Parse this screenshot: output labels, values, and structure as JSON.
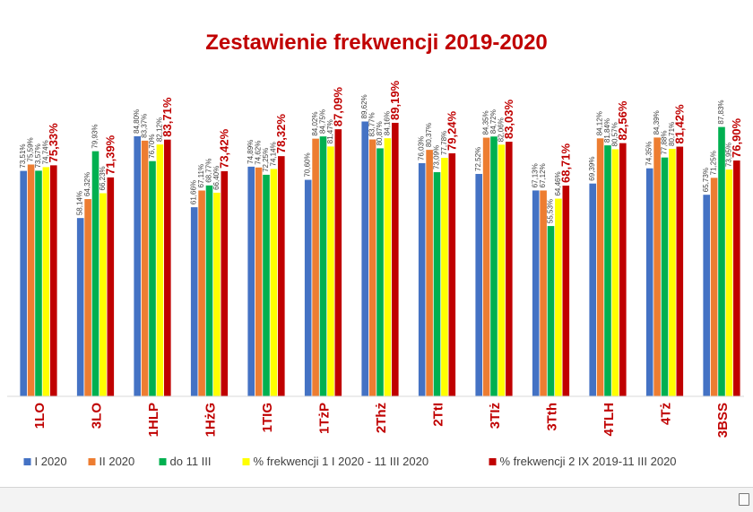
{
  "chart_data": {
    "type": "bar",
    "title": "Zestawienie frekwencji 2019-2020",
    "categories": [
      "1LO",
      "3LO",
      "1HLP",
      "1HżG",
      "1TIG",
      "1TżP",
      "2Thż",
      "2TtI",
      "3TIż",
      "3Tth",
      "4TLH",
      "4Tż",
      "3BSS"
    ],
    "series": [
      {
        "name": "I 2020",
        "color": "#4472c4",
        "values": [
          73.51,
          58.14,
          84.8,
          61.66,
          74.89,
          70.6,
          89.62,
          76.03,
          72.52,
          67.13,
          69.39,
          74.35,
          65.73
        ],
        "labels": [
          "73,51%",
          "58,14%",
          "84,80%",
          "61,66%",
          "74,89%",
          "70,60%",
          "89,62%",
          "76,03%",
          "72,52%",
          "67,13%",
          "69,39%",
          "74,35%",
          "65,73%"
        ]
      },
      {
        "name": "II 2020",
        "color": "#ed7d31",
        "values": [
          75.59,
          64.32,
          83.37,
          67.11,
          74.62,
          84.02,
          83.77,
          80.37,
          84.35,
          67.12,
          84.12,
          84.39,
          71.25
        ],
        "labels": [
          "75,59%",
          "64,32%",
          "83,37%",
          "67,11%",
          "74,62%",
          "84,02%",
          "83,77%",
          "80,37%",
          "84,35%",
          "67,12%",
          "84,12%",
          "84,39%",
          "71,25%"
        ]
      },
      {
        "name": "do 11 III",
        "color": "#00b050",
        "values": [
          73.57,
          79.93,
          76.7,
          68.77,
          72.25,
          84.75,
          80.87,
          73.09,
          84.72,
          55.53,
          81.84,
          77.88,
          87.83
        ],
        "labels": [
          "73,57%",
          "79,93%",
          "76,70%",
          "68,77%",
          "72,25%",
          "84,75%",
          "80,87%",
          "73,09%",
          "84,72%",
          "55,53%",
          "81,84%",
          "77,88%",
          "87,83%"
        ]
      },
      {
        "name": "% frekwencji 1 I 2020 - 11 III 2020",
        "color": "#ffff00",
        "values": [
          74.74,
          66.23,
          82.12,
          66.4,
          74.14,
          81.47,
          84.16,
          77.78,
          82.06,
          64.46,
          80.57,
          80.71,
          73.95
        ],
        "labels": [
          "74,74%",
          "66,23%",
          "82,12%",
          "66,40%",
          "74,14%",
          "81,47%",
          "84,16%",
          "77,78%",
          "82,06%",
          "64,46%",
          "80,57%",
          "80,71%",
          "73,95%"
        ]
      },
      {
        "name": "% frekwencji 2 IX 2019-11 III 2020",
        "color": "#c00000",
        "values": [
          75.33,
          71.39,
          83.71,
          73.42,
          78.32,
          87.09,
          89.19,
          79.24,
          83.03,
          68.71,
          82.56,
          81.42,
          76.9
        ],
        "labels": [
          "75,33%",
          "71,39%",
          "83,71%",
          "73,42%",
          "78,32%",
          "87,09%",
          "89,19%",
          "79,24%",
          "83,03%",
          "68,71%",
          "82,56%",
          "81,42%",
          "76,90%"
        ]
      }
    ],
    "ylim": [
      0,
      100
    ],
    "grid": false,
    "legend_position": "bottom",
    "title_color": "#c00000",
    "category_label_color": "#c00000"
  }
}
